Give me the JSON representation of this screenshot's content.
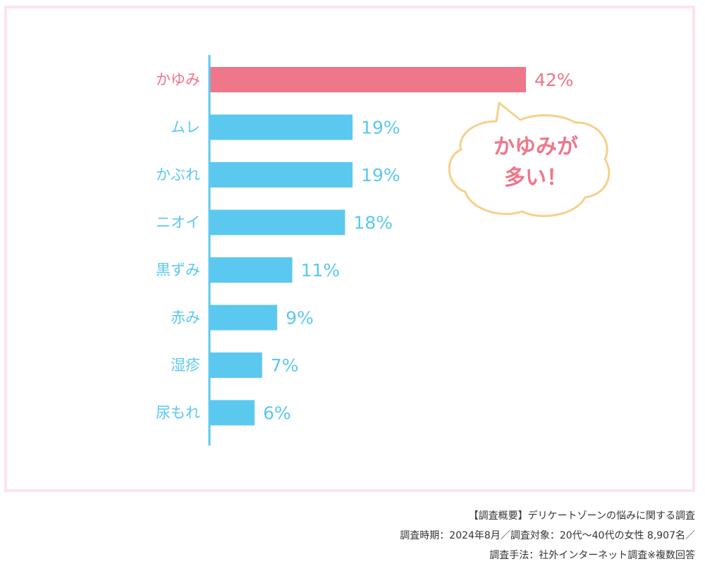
{
  "chart_data": {
    "type": "bar",
    "orientation": "horizontal",
    "categories": [
      "かゆみ",
      "ムレ",
      "かぶれ",
      "ニオイ",
      "黒ずみ",
      "赤み",
      "湿疹",
      "尿もれ"
    ],
    "values": [
      42,
      19,
      19,
      18,
      11,
      9,
      7,
      6
    ],
    "value_labels": [
      "42%",
      "19%",
      "19%",
      "18%",
      "11%",
      "9%",
      "7%",
      "6%"
    ],
    "highlight_index": 0,
    "xlim": [
      0,
      42
    ],
    "grid": false,
    "colors": {
      "highlight": "#ee778a",
      "bar": "#5bc8ef",
      "axis": "#5bc8ef"
    }
  },
  "callout": {
    "line1": "かゆみが",
    "line2": "多い！",
    "fill": "#ffffff",
    "stroke": "#f7d08a",
    "text_color": "#ee778a"
  },
  "survey": {
    "line1": "【調査概要】デリケートゾーンの悩みに関する調査",
    "line2": "調査時期：2024年8月／調査対象：20代〜40代の女性 8,907名／",
    "line3": "調査手法：社外インターネット調査※複数回答"
  },
  "colors": {
    "frame_border": "#fce4e8"
  }
}
